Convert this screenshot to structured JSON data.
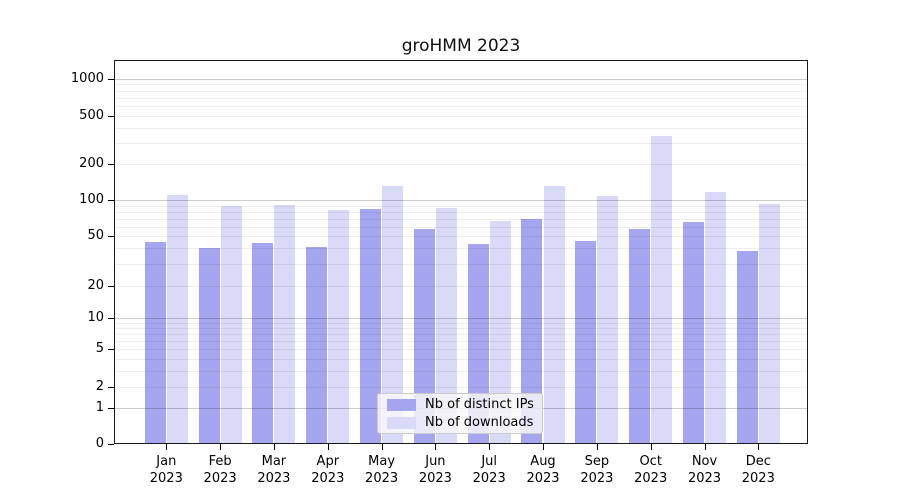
{
  "title": "groHMM 2023",
  "chart_data": {
    "type": "bar",
    "title": "groHMM 2023",
    "categories": [
      "Jan 2023",
      "Feb 2023",
      "Mar 2023",
      "Apr 2023",
      "May 2023",
      "Jun 2023",
      "Jul 2023",
      "Aug 2023",
      "Sep 2023",
      "Oct 2023",
      "Nov 2023",
      "Dec 2023"
    ],
    "series": [
      {
        "name": "Nb of distinct IPs",
        "color": "#a6a6f0",
        "values": [
          45,
          40,
          44,
          41,
          84,
          57,
          43,
          69,
          46,
          57,
          66,
          38
        ]
      },
      {
        "name": "Nb of downloads",
        "color": "#d9d9f8",
        "values": [
          110,
          89,
          91,
          83,
          131,
          85,
          67,
          130,
          108,
          340,
          117,
          92
        ]
      }
    ],
    "xlabel": "",
    "ylabel": "",
    "yscale": "log (with 0 baseline)",
    "yticks": [
      0,
      1,
      2,
      5,
      10,
      20,
      50,
      100,
      200,
      500,
      1000
    ],
    "ylim": [
      0,
      1400
    ],
    "grid": "horizontal major+minor",
    "legend_position": "bottom-center-inside"
  },
  "legend": {
    "items": [
      {
        "label": "Nb of distinct IPs",
        "color": "#a6a6f0"
      },
      {
        "label": "Nb of downloads",
        "color": "#d9d9f8"
      }
    ]
  }
}
